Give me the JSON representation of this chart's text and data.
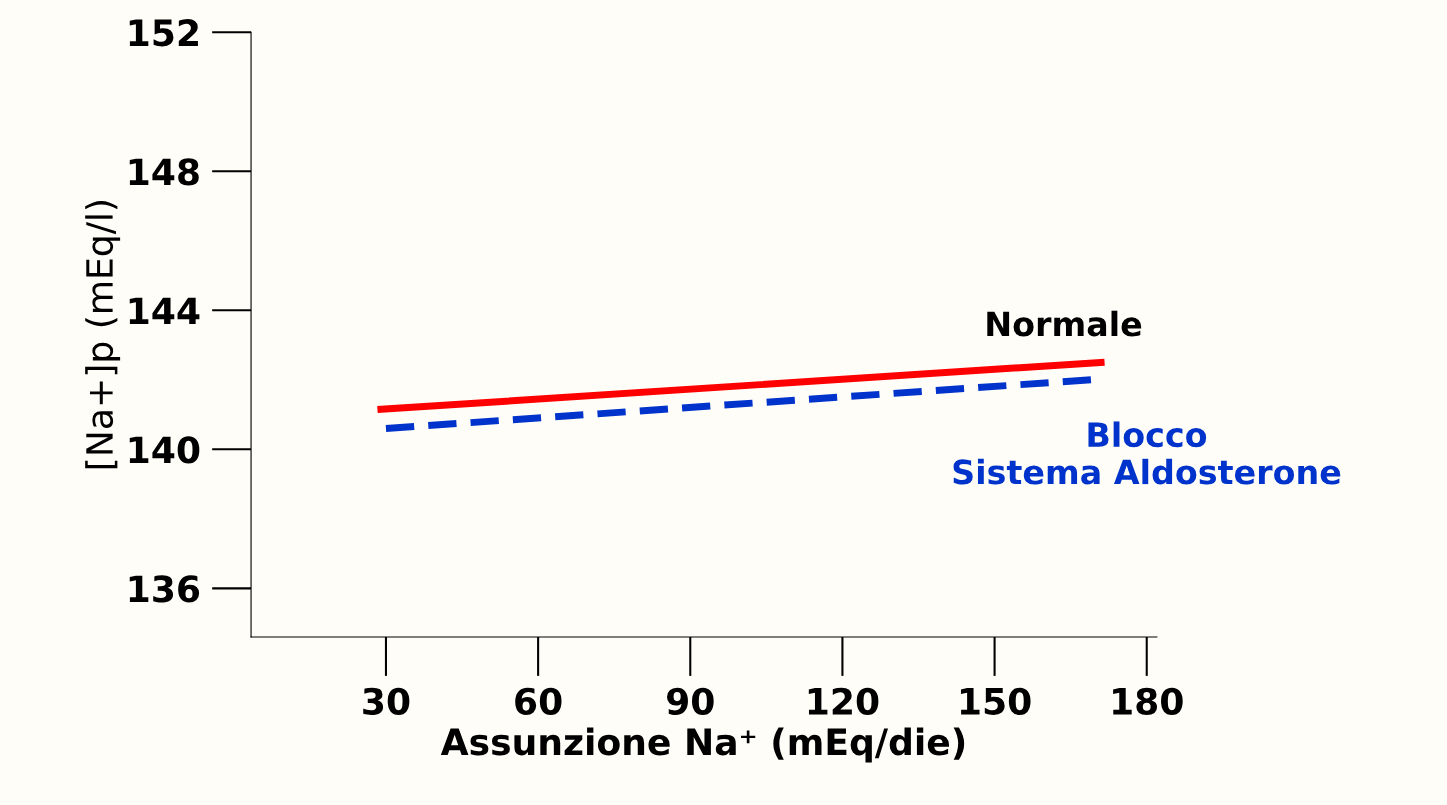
{
  "chart_data": {
    "type": "line",
    "xlabel": "Assunzione Na⁺ (mEq/die)",
    "ylabel": "[Na+]p (mEq/l)",
    "xlim": [
      3.4,
      182
    ],
    "xticks": [
      30,
      60,
      90,
      120,
      150,
      180
    ],
    "ylim": [
      134.6,
      152
    ],
    "yticks": [
      136,
      140,
      144,
      148,
      152
    ],
    "grid": false,
    "legend": false,
    "series": [
      {
        "name": "Normale",
        "color": "#ff0000",
        "line_style": "solid",
        "x": [
          29,
          171
        ],
        "values": [
          141.15,
          142.5
        ]
      },
      {
        "name": "Blocco\nSistema Aldosterone",
        "color": "#0033cc",
        "line_style": "dashed",
        "x": [
          30,
          169
        ],
        "values": [
          140.6,
          142.0
        ]
      }
    ]
  }
}
